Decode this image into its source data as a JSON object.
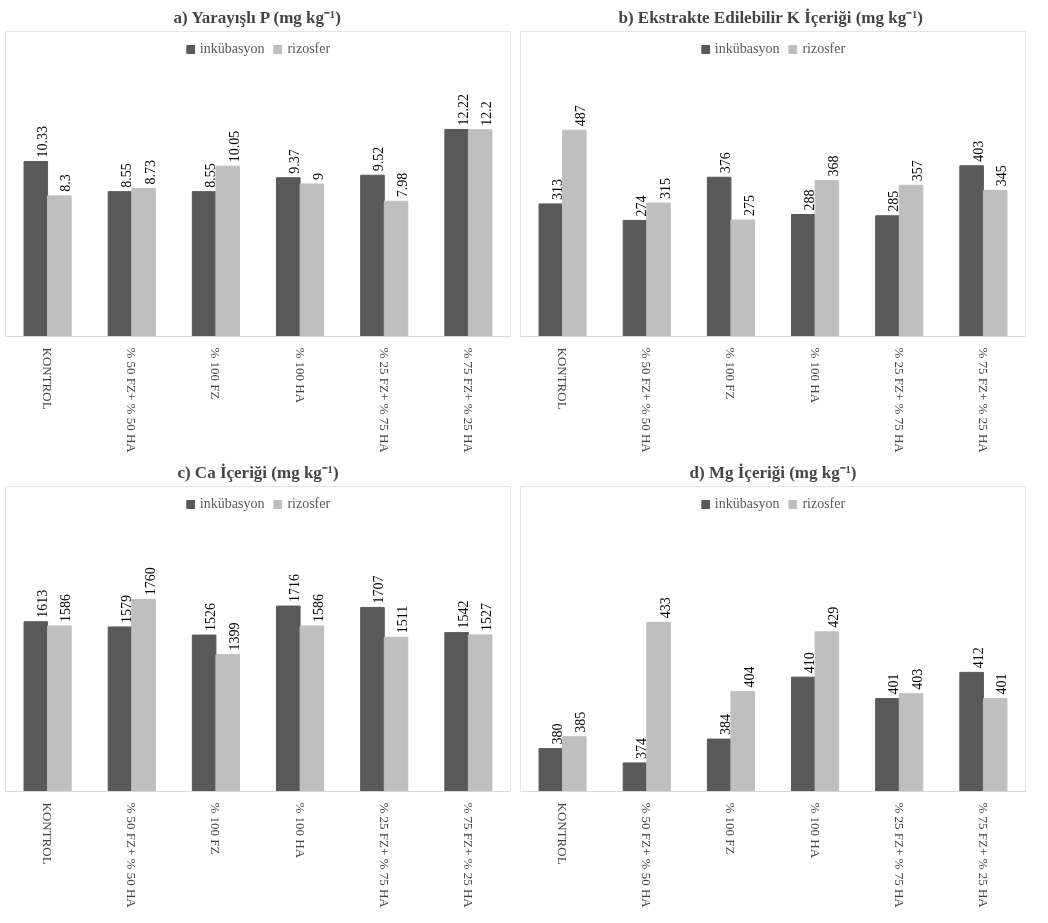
{
  "chart_data": [
    {
      "type": "bar",
      "title": "a) Yarayışlı P (mg kg⁻¹)",
      "categories": [
        "KONTROL",
        "% 50 FZ+ % 50 HA",
        "% 100 FZ",
        "% 100 HA",
        "% 25 FZ+ % 75 HA",
        "% 75 FZ+ % 25 HA"
      ],
      "series": [
        {
          "name": "inkübasyon",
          "color": "#595959",
          "values": [
            10.33,
            8.55,
            8.55,
            9.37,
            9.52,
            12.22
          ]
        },
        {
          "name": "rizosfer",
          "color": "#bfbfbf",
          "values": [
            8.3,
            8.73,
            10.05,
            9,
            7.98,
            12.2
          ]
        }
      ],
      "ylim": [
        0,
        18
      ],
      "data_labels": true,
      "legend": "top",
      "tick_labels": "x",
      "grid": false
    },
    {
      "type": "bar",
      "title": "b) Ekstrakte Edilebilir K İçeriği  (mg kg⁻¹)",
      "categories": [
        "KONTROL",
        "% 50 FZ+ % 50 HA",
        "% 100 FZ",
        "% 100 HA",
        "% 25 FZ+ % 75 HA",
        "% 75 FZ+ % 25 HA"
      ],
      "series": [
        {
          "name": "inkübasyon",
          "color": "#595959",
          "values": [
            313,
            274,
            376,
            288,
            285,
            403
          ]
        },
        {
          "name": "rizosfer",
          "color": "#bfbfbf",
          "values": [
            487,
            315,
            275,
            368,
            357,
            345
          ]
        }
      ],
      "ylim": [
        0,
        720
      ],
      "data_labels": true,
      "legend": "top",
      "tick_labels": "x",
      "grid": false
    },
    {
      "type": "bar",
      "title": "c) Ca İçeriği (mg kg⁻¹)",
      "categories": [
        "KONTROL",
        "% 50 FZ+ % 50 HA",
        "% 100 FZ",
        "% 100 HA",
        "% 25 FZ+ % 75 HA",
        "% 75 FZ+ % 25 HA"
      ],
      "series": [
        {
          "name": "inkübasyon",
          "color": "#595959",
          "values": [
            1613,
            1579,
            1526,
            1716,
            1707,
            1542
          ]
        },
        {
          "name": "rizosfer",
          "color": "#bfbfbf",
          "values": [
            1586,
            1760,
            1399,
            1586,
            1511,
            1527
          ]
        }
      ],
      "ylim": [
        500,
        2500
      ],
      "data_labels": true,
      "legend": "top",
      "tick_labels": "x",
      "grid": false
    },
    {
      "type": "bar",
      "title": "d) Mg İçeriği (mg kg⁻¹)",
      "categories": [
        "KONTROL",
        "% 50 FZ+ % 50 HA",
        "% 100 FZ",
        "% 100 HA",
        "% 25 FZ+ % 75 HA",
        "% 75 FZ+ % 25 HA"
      ],
      "series": [
        {
          "name": "inkübasyon",
          "color": "#595959",
          "values": [
            380,
            374,
            384,
            410,
            401,
            412
          ]
        },
        {
          "name": "rizosfer",
          "color": "#bfbfbf",
          "values": [
            385,
            433,
            404,
            429,
            403,
            401
          ]
        }
      ],
      "ylim": [
        362,
        490
      ],
      "data_labels": true,
      "legend": "top",
      "tick_labels": "x",
      "grid": false
    }
  ]
}
